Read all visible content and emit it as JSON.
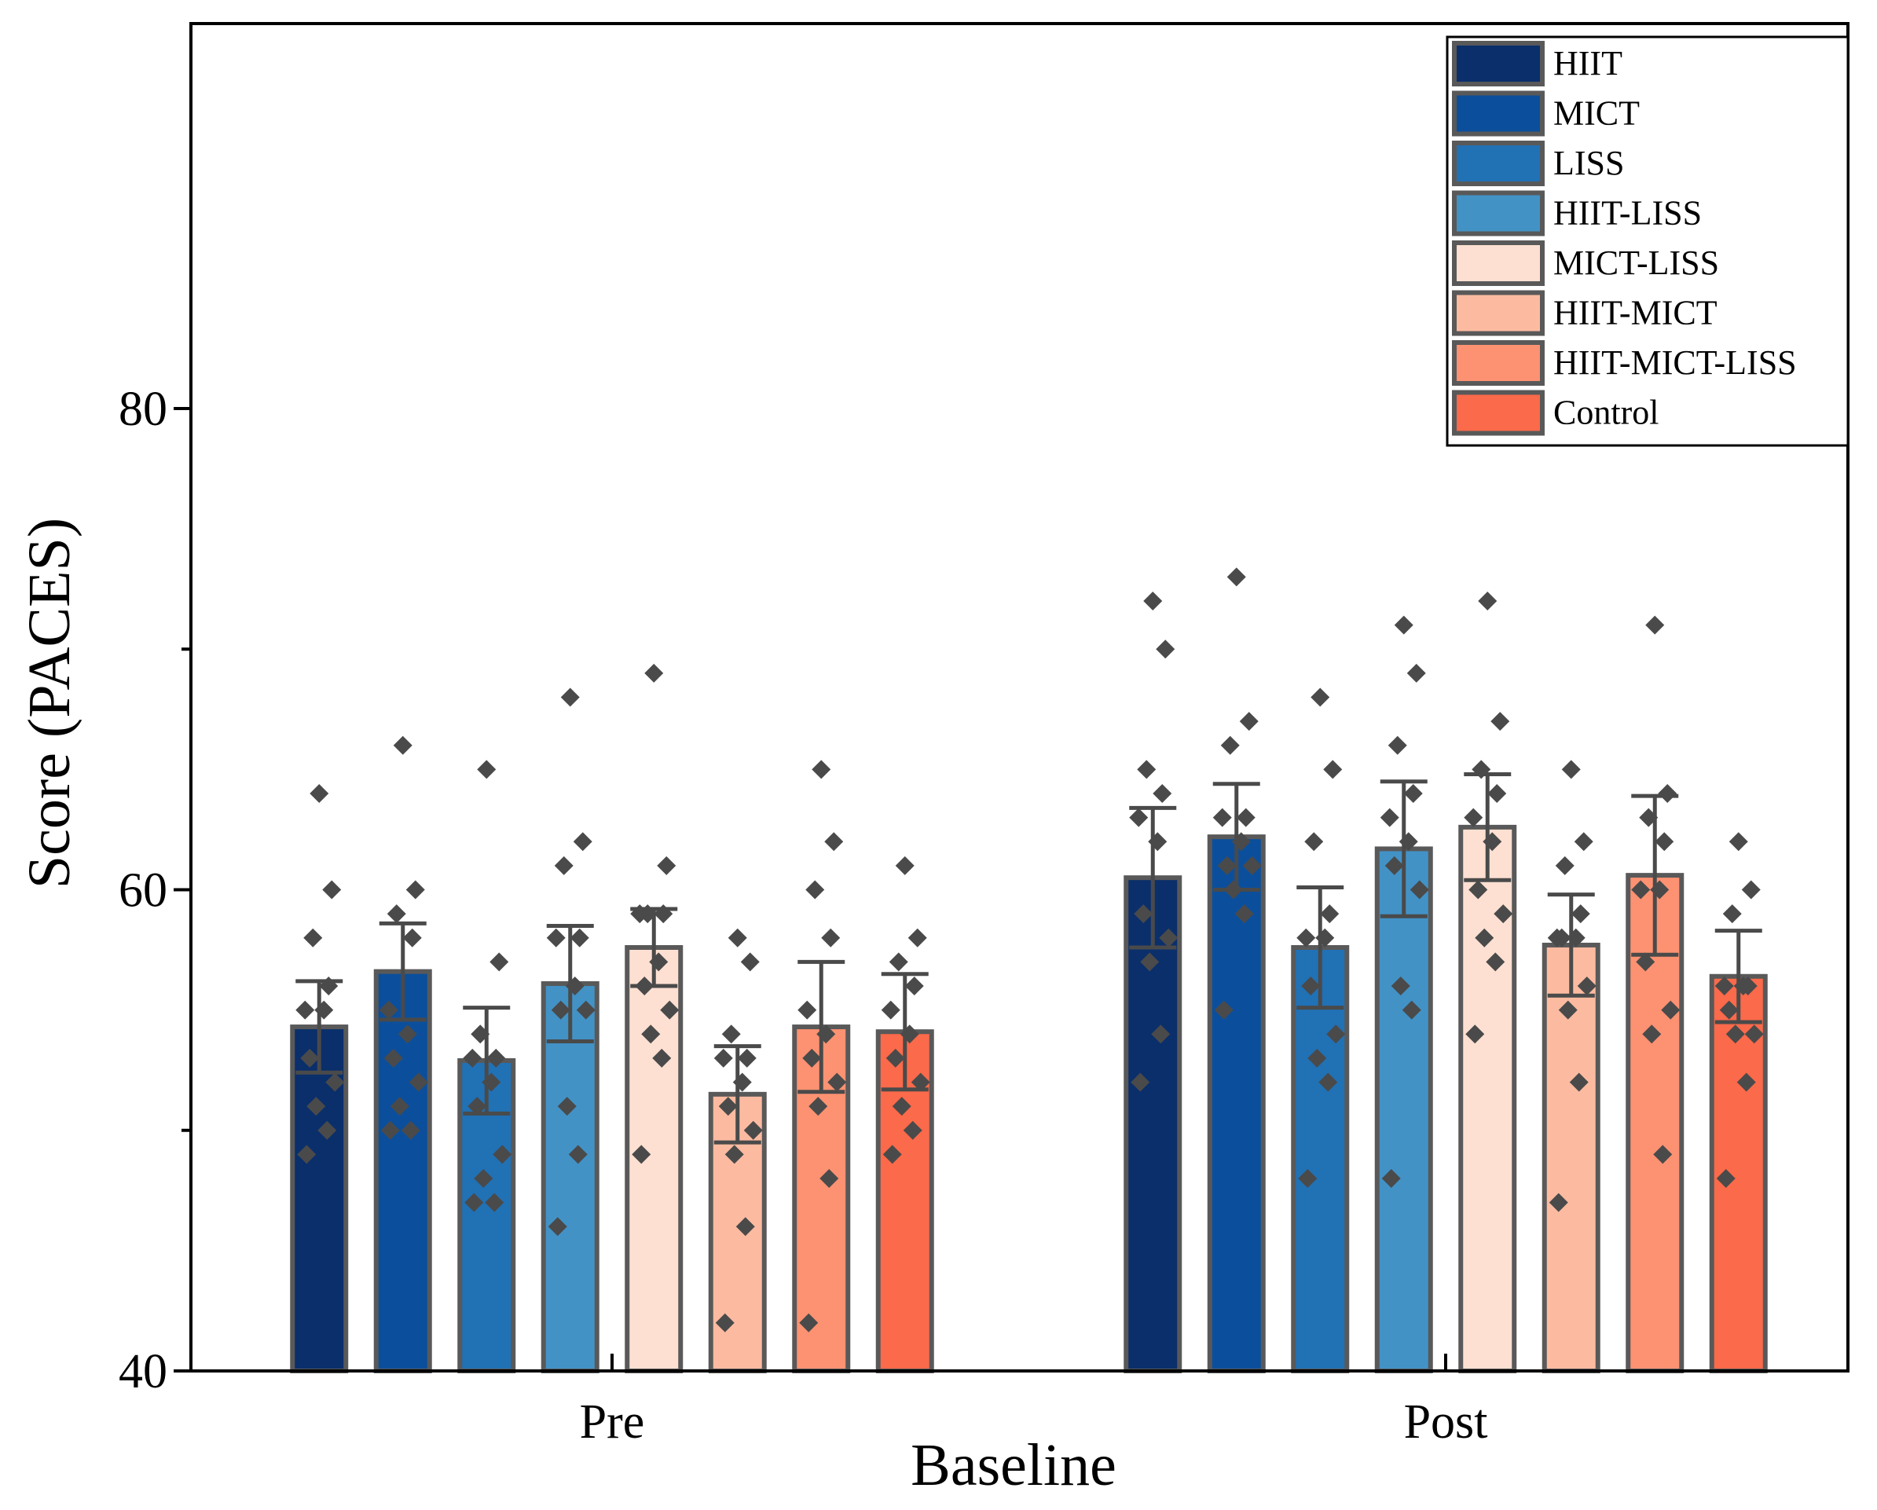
{
  "chart_data": {
    "type": "bar",
    "title": "",
    "xlabel": "Baseline",
    "ylabel": "Score (PACES)",
    "ylim": [
      40,
      96
    ],
    "yticks": [
      40,
      60,
      80
    ],
    "grid": false,
    "legend_position": "top-right",
    "categories": [
      "Pre",
      "Post"
    ],
    "series": [
      {
        "name": "HIIT",
        "color": "#0a2f6b",
        "values": [
          54.3,
          60.5
        ],
        "errors": [
          1.9,
          2.9
        ],
        "points": [
          [
            64,
            60,
            58,
            56,
            55,
            55,
            53,
            52,
            51,
            50,
            49
          ],
          [
            72,
            70,
            65,
            64,
            63,
            62,
            59,
            58,
            57,
            54,
            52
          ]
        ]
      },
      {
        "name": "MICT",
        "color": "#0b4f9c",
        "values": [
          56.6,
          62.2
        ],
        "errors": [
          2.0,
          2.2
        ],
        "points": [
          [
            66,
            60,
            59,
            58,
            55,
            54,
            53,
            52,
            51,
            50,
            50
          ],
          [
            73,
            67,
            66,
            63,
            63,
            62,
            61,
            61,
            60,
            59,
            55
          ]
        ]
      },
      {
        "name": "LISS",
        "color": "#2171b5",
        "values": [
          52.9,
          57.6
        ],
        "errors": [
          2.2,
          2.5
        ],
        "points": [
          [
            65,
            57,
            54,
            53,
            53,
            52,
            51,
            49,
            48,
            47,
            47
          ],
          [
            68,
            65,
            62,
            59,
            58,
            58,
            56,
            54,
            53,
            52,
            48
          ]
        ]
      },
      {
        "name": "HIIT-LISS",
        "color": "#4292c6",
        "values": [
          56.1,
          61.7
        ],
        "errors": [
          2.4,
          2.8
        ],
        "points": [
          [
            68,
            62,
            61,
            58,
            58,
            56,
            55,
            55,
            51,
            49,
            46
          ],
          [
            71,
            69,
            66,
            64,
            63,
            62,
            61,
            60,
            56,
            55,
            48
          ]
        ]
      },
      {
        "name": "MICT-LISS",
        "color": "#fde0d2",
        "values": [
          57.6,
          62.6
        ],
        "errors": [
          1.6,
          2.2
        ],
        "points": [
          [
            69,
            61,
            59,
            59,
            59,
            57,
            56,
            55,
            54,
            53,
            49
          ],
          [
            72,
            67,
            65,
            64,
            63,
            62,
            60,
            59,
            58,
            57,
            54
          ]
        ]
      },
      {
        "name": "HIIT-MICT",
        "color": "#fcbba1",
        "values": [
          51.5,
          57.7
        ],
        "errors": [
          2.0,
          2.1
        ],
        "points": [
          [
            58,
            57,
            54,
            53,
            53,
            52,
            51,
            50,
            49,
            46,
            42
          ],
          [
            65,
            62,
            61,
            59,
            58,
            58,
            58,
            56,
            55,
            52,
            47
          ]
        ]
      },
      {
        "name": "HIIT-MICT-LISS",
        "color": "#fc9272",
        "values": [
          54.3,
          60.6
        ],
        "errors": [
          2.7,
          3.3
        ],
        "points": [
          [
            65,
            62,
            60,
            58,
            55,
            54,
            53,
            52,
            51,
            48,
            42
          ],
          [
            71,
            64,
            63,
            62,
            60,
            60,
            57,
            55,
            54,
            49
          ]
        ]
      },
      {
        "name": "Control",
        "color": "#fb6a4a",
        "values": [
          54.1,
          56.4
        ],
        "errors": [
          2.4,
          1.9
        ],
        "points": [
          [
            61,
            58,
            57,
            56,
            55,
            54,
            53,
            52,
            51,
            50,
            49
          ],
          [
            62,
            60,
            59,
            56,
            56,
            56,
            55,
            54,
            54,
            52,
            48
          ]
        ]
      }
    ]
  }
}
